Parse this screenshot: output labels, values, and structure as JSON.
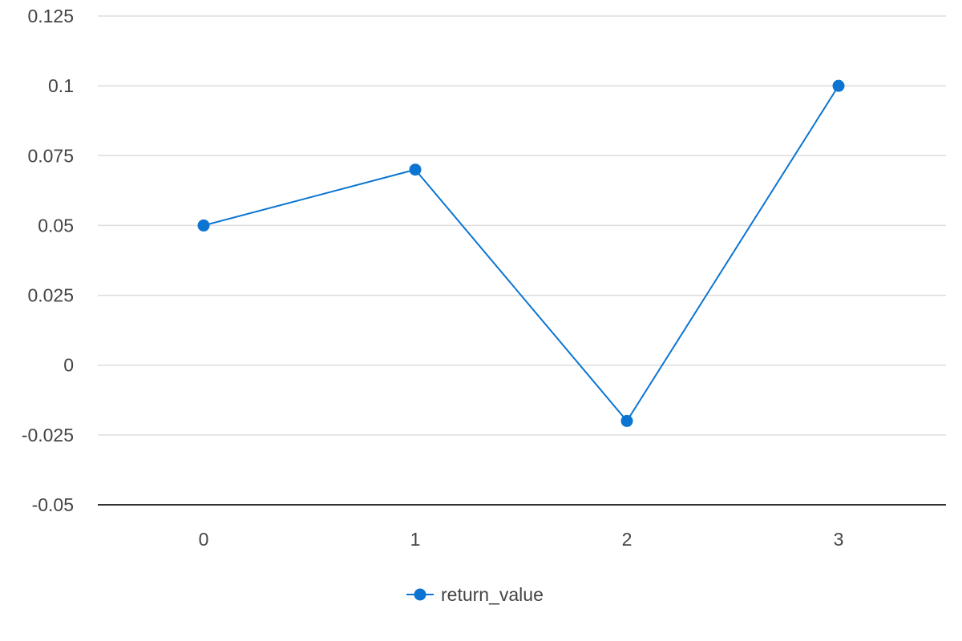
{
  "chart_data": {
    "type": "line",
    "categories": [
      "0",
      "1",
      "2",
      "3"
    ],
    "series": [
      {
        "name": "return_value",
        "values": [
          0.05,
          0.07,
          -0.02,
          0.1
        ],
        "color": "#0b75d1"
      }
    ],
    "y_ticks": [
      "0.125",
      "0.1",
      "0.075",
      "0.05",
      "0.025",
      "0",
      "-0.025",
      "-0.05"
    ],
    "ylim": [
      -0.05,
      0.125
    ],
    "grid": true,
    "legend_position": "bottom",
    "title": "",
    "xlabel": "",
    "ylabel": ""
  }
}
